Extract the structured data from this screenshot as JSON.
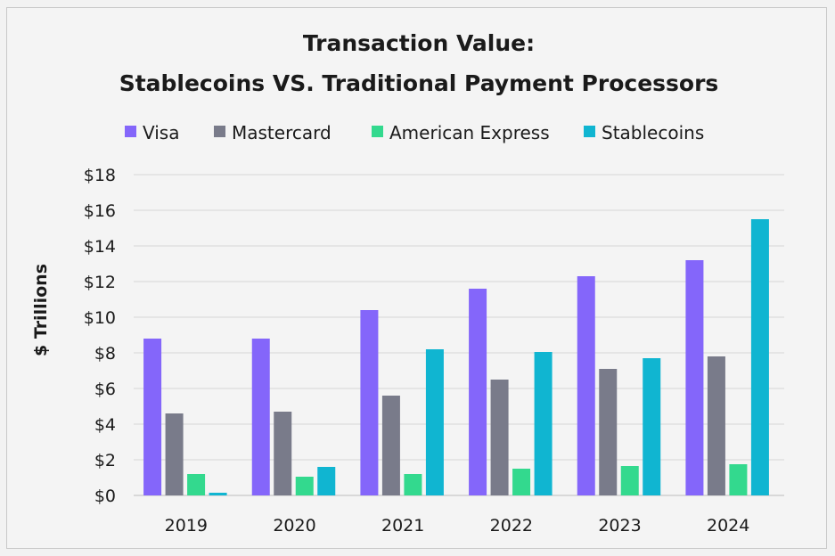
{
  "chart_data": {
    "type": "bar",
    "title": "Transaction Value:",
    "subtitle": "Stablecoins VS. Traditional Payment Processors",
    "xlabel": "",
    "ylabel": "$ Trillions",
    "ylim": [
      0,
      18
    ],
    "yticks": [
      0,
      2,
      4,
      6,
      8,
      10,
      12,
      14,
      16,
      18
    ],
    "ytick_labels": [
      "$0",
      "$2",
      "$4",
      "$6",
      "$8",
      "$10",
      "$12",
      "$14",
      "$16",
      "$18"
    ],
    "grid": true,
    "legend_position": "top",
    "categories": [
      "2019",
      "2020",
      "2021",
      "2022",
      "2023",
      "2024"
    ],
    "series": [
      {
        "name": "Visa",
        "color": "#8466fa",
        "values": [
          8.8,
          8.8,
          10.4,
          11.6,
          12.3,
          13.2
        ]
      },
      {
        "name": "Mastercard",
        "color": "#797b8a",
        "values": [
          4.6,
          4.7,
          5.6,
          6.5,
          7.1,
          7.8
        ]
      },
      {
        "name": "American Express",
        "color": "#33d98e",
        "values": [
          1.2,
          1.05,
          1.2,
          1.5,
          1.65,
          1.75
        ]
      },
      {
        "name": "Stablecoins",
        "color": "#10b5d1",
        "values": [
          0.15,
          1.6,
          8.2,
          8.05,
          7.7,
          15.5
        ]
      }
    ]
  }
}
